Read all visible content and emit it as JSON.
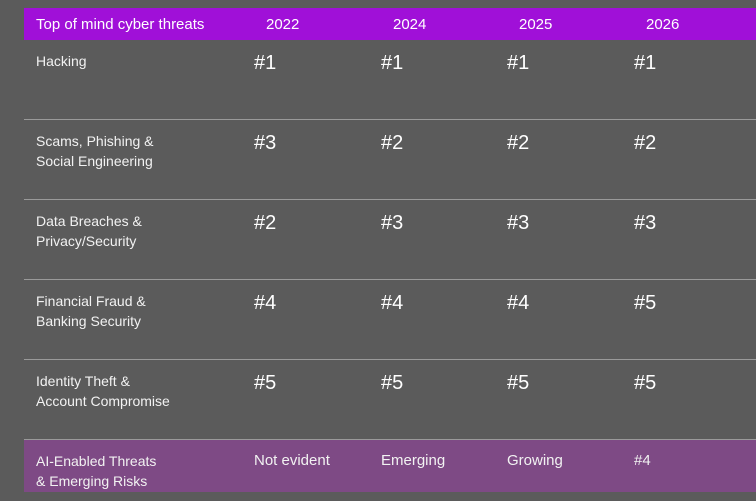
{
  "header": {
    "title": "Top of mind cyber threats",
    "years": [
      "2022",
      "2024",
      "2025",
      "2026"
    ]
  },
  "rows": [
    {
      "label": "Hacking",
      "ranks": [
        "#1",
        "#1",
        "#1",
        "#1"
      ]
    },
    {
      "label": "Scams, Phishing & Social Engineering",
      "label_lines": [
        "Scams, Phishing &",
        "Social Engineering"
      ],
      "ranks": [
        "#3",
        "#2",
        "#2",
        "#2"
      ]
    },
    {
      "label_lines": [
        "Data Breaches &",
        "Privacy/Security"
      ],
      "ranks": [
        "#2",
        "#3",
        "#3",
        "#3"
      ]
    },
    {
      "label_lines": [
        "Financial Fraud &",
        "Banking Security"
      ],
      "ranks": [
        "#4",
        "#4",
        "#4",
        "#5"
      ]
    },
    {
      "label_lines": [
        "Identity Theft &",
        "Account Compromise"
      ],
      "ranks": [
        "#5",
        "#5",
        "#5",
        "#5"
      ]
    }
  ],
  "ai_row": {
    "label_lines": [
      "AI-Enabled Threats",
      "& Emerging Risks"
    ],
    "values": [
      "Not evident",
      "Emerging",
      "Growing",
      "#4"
    ]
  },
  "colors": {
    "background": "#5b5b5b",
    "header": "#a010d8",
    "ai_row": "#7e4a85"
  }
}
